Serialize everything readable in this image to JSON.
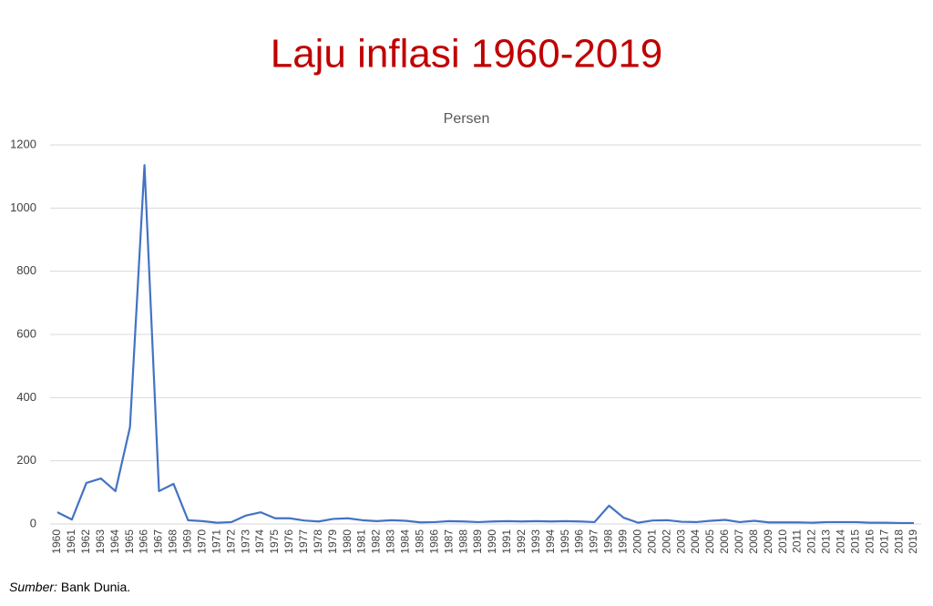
{
  "chart_data": {
    "type": "line",
    "title": "Laju inflasi 1960-2019",
    "subtitle": "Persen",
    "source_label": "Sumber:",
    "source_text": "Bank Dunia.",
    "categories": [
      "1960",
      "1961",
      "1962",
      "1963",
      "1964",
      "1965",
      "1966",
      "1967",
      "1968",
      "1969",
      "1970",
      "1971",
      "1972",
      "1973",
      "1974",
      "1975",
      "1976",
      "1977",
      "1978",
      "1979",
      "1980",
      "1981",
      "1982",
      "1983",
      "1984",
      "1985",
      "1986",
      "1987",
      "1988",
      "1989",
      "1990",
      "1991",
      "1992",
      "1993",
      "1994",
      "1995",
      "1996",
      "1997",
      "1998",
      "1999",
      "2000",
      "2001",
      "2002",
      "2003",
      "2004",
      "2005",
      "2006",
      "2007",
      "2008",
      "2009",
      "2010",
      "2011",
      "2012",
      "2013",
      "2014",
      "2015",
      "2016",
      "2017",
      "2018",
      "2019"
    ],
    "series": [
      {
        "name": "Persen",
        "color": "#4472c4",
        "values": [
          37,
          14,
          130,
          144,
          104,
          306,
          1136,
          104,
          127,
          12,
          9,
          4,
          6,
          27,
          37,
          18,
          18,
          11,
          8,
          16,
          18,
          12,
          9,
          12,
          10,
          5,
          6,
          9,
          8,
          6,
          8,
          9,
          8,
          9,
          8,
          9,
          8,
          6,
          58,
          20,
          4,
          11,
          12,
          7,
          6,
          10,
          13,
          6,
          10,
          5,
          5,
          5,
          4,
          6,
          6,
          6,
          4,
          4,
          3,
          3
        ]
      }
    ],
    "ylim": [
      0,
      1200
    ],
    "yticks": [
      0,
      200,
      400,
      600,
      800,
      1000,
      1200
    ],
    "grid": true,
    "title_color": "#c00000"
  }
}
